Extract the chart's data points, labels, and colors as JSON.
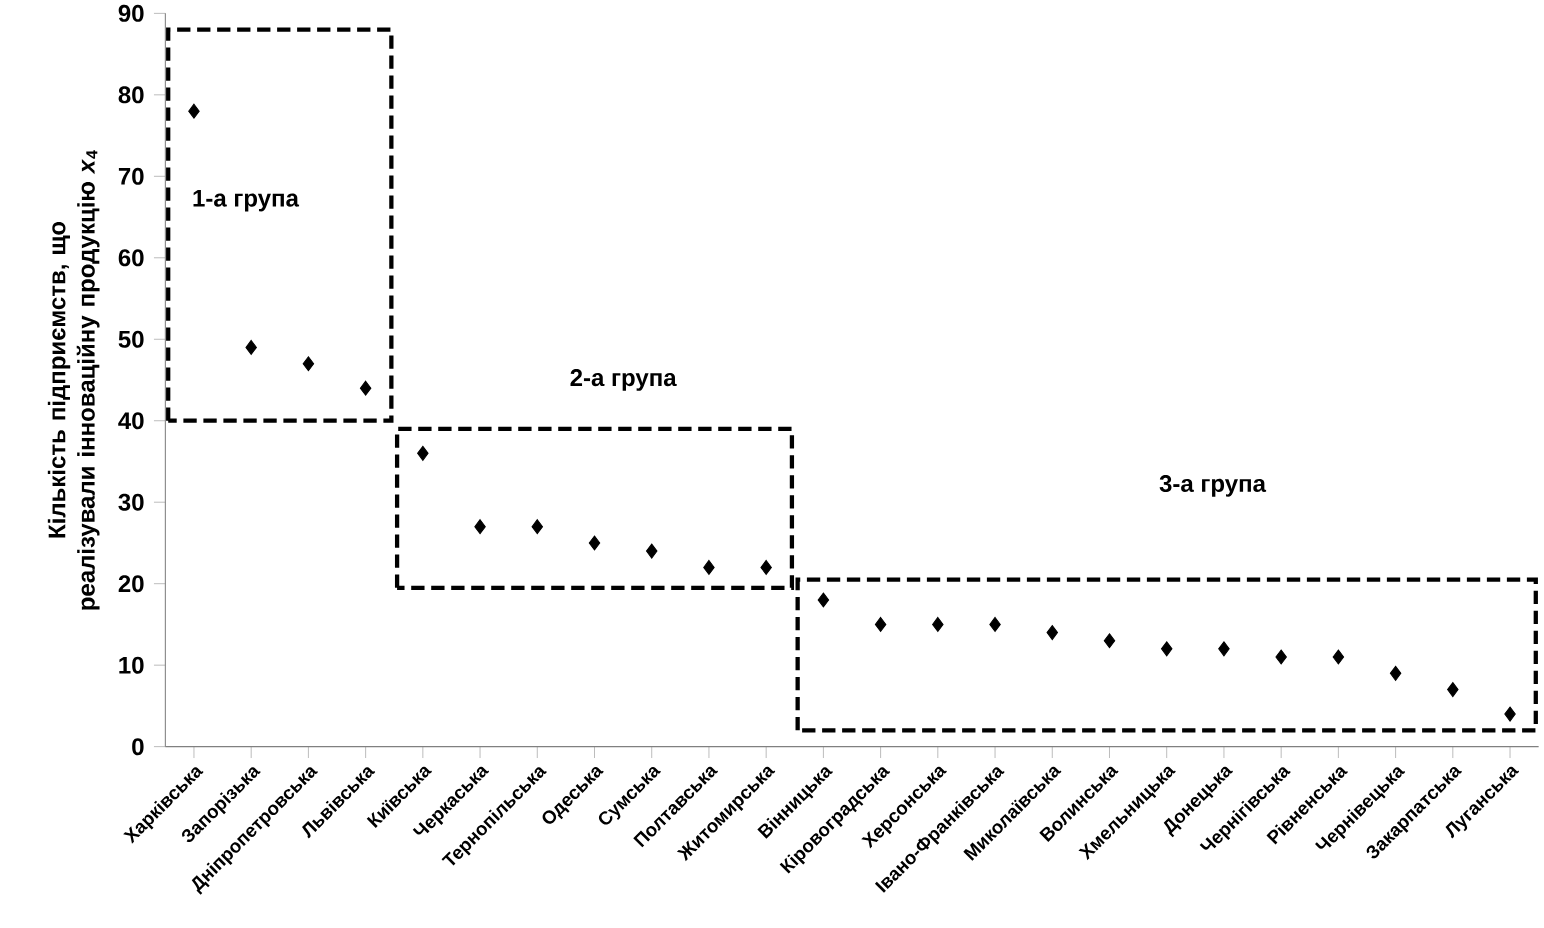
{
  "chart_data": {
    "type": "scatter",
    "ylabel": "Кількість підприємств, що реалізували інноваційну продукцію *x*$_{4}$",
    "categories": [
      "Харківська",
      "Запорізька",
      "Дніпропетровська",
      "Львівська",
      "Київська",
      "Черкаська",
      "Тернопільська",
      "Одеська",
      "Сумська",
      "Полтавська",
      "Житомирська",
      "Вінницька",
      "Кіровоградська",
      "Херсонська",
      "Івано-Франківська",
      "Миколаївська",
      "Волинська",
      "Хмельницька",
      "Донецька",
      "Чернігівська",
      "Рівненська",
      "Чернівецька",
      "Закарпатська",
      "Луганська"
    ],
    "values": [
      78,
      49,
      47,
      44,
      36,
      27,
      27,
      25,
      24,
      22,
      22,
      18,
      15,
      15,
      15,
      14,
      13,
      12,
      12,
      11,
      11,
      9,
      7,
      4
    ],
    "color": "#000000",
    "marker": "diamond",
    "ylim": [
      0,
      90
    ],
    "yticks": [
      0,
      10,
      20,
      30,
      40,
      50,
      60,
      70,
      80,
      90
    ],
    "annotations": [
      "1-а група",
      "2-а група",
      "3-а група"
    ]
  }
}
